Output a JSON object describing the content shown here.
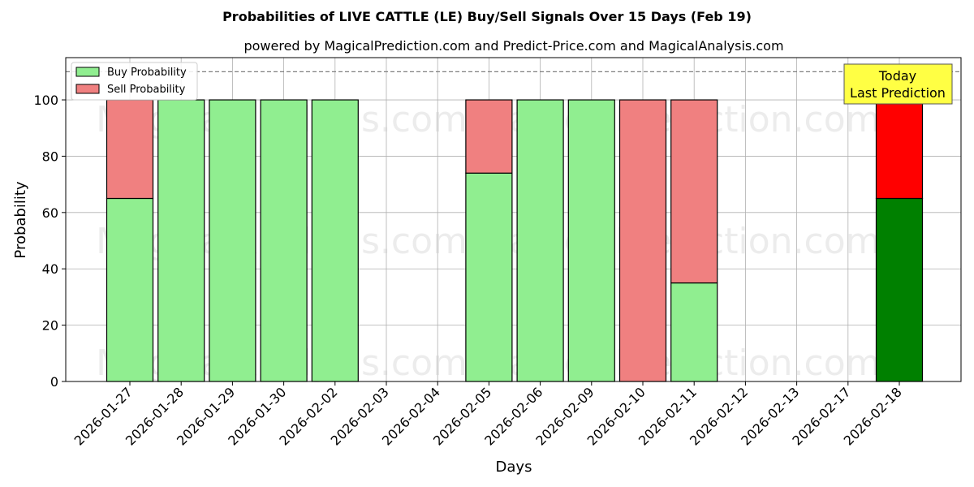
{
  "chart_data": {
    "type": "bar",
    "stacked": true,
    "title": "Probabilities of LIVE CATTLE (LE) Buy/Sell Signals Over 15 Days (Feb 19)",
    "subtitle": "powered by MagicalPrediction.com and Predict-Price.com and MagicalAnalysis.com",
    "xlabel": "Days",
    "ylabel": "Probability",
    "ylim": [
      0,
      115
    ],
    "yticks": [
      0,
      20,
      40,
      60,
      80,
      100
    ],
    "reference_line": 110,
    "grid": true,
    "legend_position": "top-left",
    "categories": [
      "2026-01-27",
      "2026-01-28",
      "2026-01-29",
      "2026-01-30",
      "2026-02-02",
      "2026-02-03",
      "2026-02-04",
      "2026-02-05",
      "2026-02-06",
      "2026-02-09",
      "2026-02-10",
      "2026-02-11",
      "2026-02-12",
      "2026-02-13",
      "2026-02-17",
      "2026-02-18"
    ],
    "series": [
      {
        "name": "Buy Probability",
        "color": "#90ee90",
        "values": [
          65,
          100,
          100,
          100,
          100,
          null,
          null,
          74,
          100,
          100,
          0,
          35,
          null,
          null,
          null,
          65
        ]
      },
      {
        "name": "Sell Probability",
        "color": "#f08080",
        "values": [
          35,
          0,
          0,
          0,
          0,
          null,
          null,
          26,
          0,
          0,
          100,
          65,
          null,
          null,
          null,
          35
        ]
      }
    ],
    "highlight": {
      "category": "2026-02-18",
      "buy_color": "#008000",
      "sell_color": "#ff0000",
      "label_line1": "Today",
      "label_line2": "Last Prediction",
      "label_bg": "#ffff44"
    },
    "watermarks": [
      "MagicalAnalysis.com",
      "MagicalPrediction.com"
    ]
  }
}
